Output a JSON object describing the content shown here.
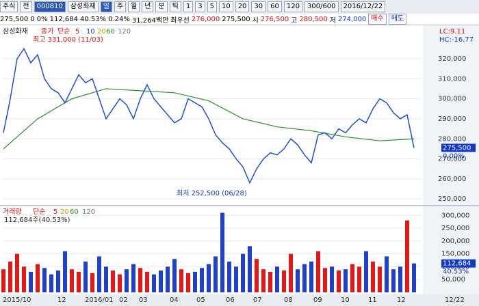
{
  "toolbar": {
    "market": "주식",
    "scope": "전",
    "code": "000810",
    "name": "삼성화재",
    "periods": [
      "일",
      "주",
      "월",
      "년",
      "분",
      "틱"
    ],
    "intervals": [
      "1",
      "3",
      "5",
      "10",
      "20",
      "30",
      "60",
      "120"
    ],
    "range": "300/600",
    "date": "2016/12/22"
  },
  "info_bar": {
    "items": [
      "275,500",
      "0",
      "0%",
      "112,684",
      "40.53%",
      "0.24%",
      "31,264백만",
      "최우선",
      "276,000",
      "275,500",
      "시",
      "276,500",
      "고",
      "280,500",
      "저",
      "274,000"
    ],
    "buy": "매수",
    "sell": "매도"
  },
  "price_chart": {
    "title": "삼성화재",
    "legend": [
      "종가",
      "단순",
      "5",
      "10",
      "20",
      "60",
      "120"
    ],
    "lc": "LC:9.11",
    "hc": "HC:-16.77",
    "high_note": "최고 331,000 (11/03)",
    "low_note": "최저 252,500 (06/28)",
    "last_label": "275,500",
    "change_label": "0.00%",
    "ylim": [
      247000,
      335000
    ],
    "yticks": [
      {
        "value": 250000,
        "label": "250,000"
      },
      {
        "value": 260000,
        "label": "260,000"
      },
      {
        "value": 270000,
        "label": "270,000"
      },
      {
        "value": 280000,
        "label": "280,000"
      },
      {
        "value": 290000,
        "label": "290,000"
      },
      {
        "value": 300000,
        "label": "300,000"
      },
      {
        "value": 310000,
        "label": "310,000"
      },
      {
        "value": 320000,
        "label": "320,000"
      }
    ],
    "close": {
      "color": "#1f4fd0",
      "values": [
        283000,
        300000,
        320000,
        325000,
        318000,
        322000,
        310000,
        305000,
        303000,
        298000,
        305000,
        312000,
        308000,
        310000,
        300000,
        290000,
        295000,
        300000,
        297000,
        290000,
        300000,
        307000,
        300000,
        296000,
        292000,
        288000,
        290000,
        300000,
        298000,
        296000,
        290000,
        282000,
        278000,
        275000,
        270000,
        266000,
        258000,
        265000,
        270000,
        273000,
        272000,
        275000,
        280000,
        277000,
        272000,
        268000,
        282000,
        283000,
        280000,
        285000,
        283000,
        287000,
        290000,
        288000,
        295000,
        300000,
        298000,
        293000,
        290000,
        292000,
        275500
      ]
    },
    "ma120": {
      "color": "#2e8b2e",
      "values": [
        275000,
        290000,
        300000,
        305000,
        304000,
        303000,
        299000,
        290000,
        286000,
        284000,
        281000,
        279000,
        280000
      ]
    }
  },
  "volume_chart": {
    "title": "거래량",
    "legend": [
      "단순",
      "5",
      "20",
      "60",
      "120"
    ],
    "summary": "112,684주(40.53%)",
    "last_label": "112,684",
    "pct_label": "40.53%",
    "ylim": [
      0,
      330000
    ],
    "yticks": [
      {
        "value": 50000,
        "label": "50,000"
      },
      {
        "value": 100000,
        "label": "100,000"
      },
      {
        "value": 150000,
        "label": "150,000"
      },
      {
        "value": 200000,
        "label": "200,000"
      },
      {
        "value": 250000,
        "label": "250,000"
      },
      {
        "value": 300000,
        "label": "300,000"
      }
    ],
    "values": [
      90000,
      120000,
      150000,
      100000,
      80000,
      110000,
      95000,
      70000,
      85000,
      160000,
      90000,
      80000,
      120000,
      75000,
      140000,
      100000,
      85000,
      70000,
      90000,
      110000,
      95000,
      80000,
      70000,
      85000,
      100000,
      130000,
      90000,
      75000,
      80000,
      95000,
      110000,
      140000,
      310000,
      120000,
      100000,
      150000,
      180000,
      130000,
      90000,
      80000,
      100000,
      85000,
      150000,
      90000,
      110000,
      120000,
      160000,
      95000,
      100000,
      85000,
      90000,
      110000,
      100000,
      160000,
      120000,
      100000,
      140000,
      90000,
      100000,
      280000,
      112684
    ]
  },
  "x_axis": {
    "labels": [
      "2015/10",
      "12",
      "2016/01",
      "02",
      "03",
      "04",
      "05",
      "06",
      "07",
      "08",
      "09",
      "10",
      "11",
      "12",
      "12/22"
    ]
  }
}
